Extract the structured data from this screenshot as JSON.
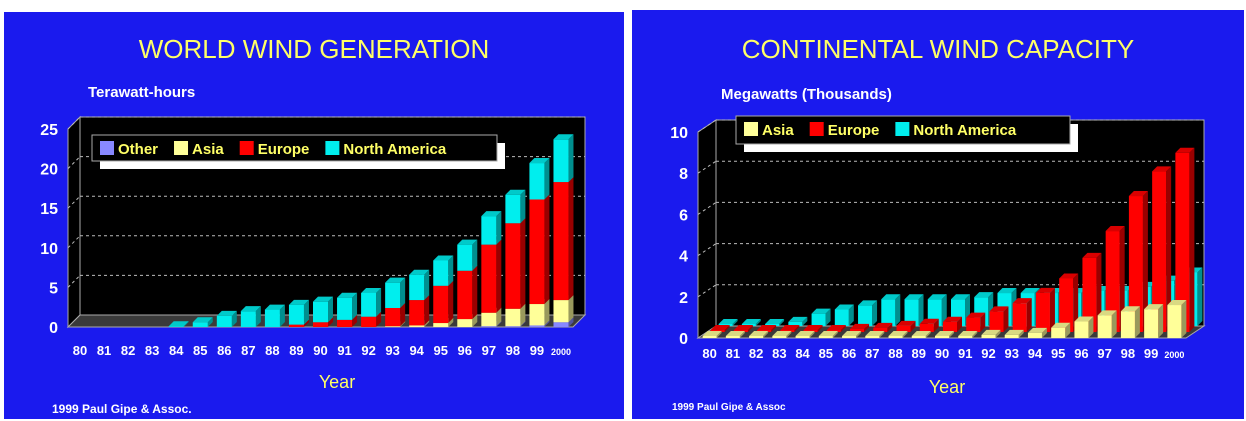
{
  "chart_data": [
    {
      "type": "bar",
      "stacked": true,
      "title": "WORLD WIND GENERATION",
      "ylabel": "Terawatt-hours",
      "xlabel": "Year",
      "ylim": [
        0,
        25
      ],
      "yticks": [
        "0",
        "5",
        "10",
        "15",
        "20",
        "25"
      ],
      "grid": true,
      "legend_position": "top-left",
      "categories": [
        "80",
        "81",
        "82",
        "83",
        "84",
        "85",
        "86",
        "87",
        "88",
        "89",
        "90",
        "91",
        "92",
        "93",
        "94",
        "95",
        "96",
        "97",
        "98",
        "99",
        "2000"
      ],
      "series": [
        {
          "name": "Other",
          "color": "#8888ff",
          "values": [
            0,
            0,
            0,
            0,
            0,
            0,
            0,
            0,
            0,
            0,
            0,
            0,
            0,
            0,
            0,
            0,
            0,
            0.1,
            0.1,
            0.2,
            0.6
          ]
        },
        {
          "name": "Asia",
          "color": "#ffff99",
          "values": [
            0,
            0,
            0,
            0,
            0,
            0,
            0,
            0,
            0,
            0,
            0,
            0,
            0,
            0.1,
            0.2,
            0.5,
            1,
            1.7,
            2.2,
            2.7,
            2.8
          ]
        },
        {
          "name": "Europe",
          "color": "#ff0000",
          "values": [
            0,
            0,
            0,
            0,
            0,
            0,
            0,
            0,
            0,
            0.3,
            0.6,
            0.9,
            1.3,
            2.3,
            3.2,
            4.7,
            6.1,
            8.6,
            10.8,
            13.2,
            14.9
          ]
        },
        {
          "name": "North America",
          "color": "#00eeee",
          "values": [
            0,
            0,
            0,
            0,
            0.1,
            0.6,
            1.4,
            2,
            2.2,
            2.5,
            2.6,
            2.8,
            3,
            3.2,
            3.2,
            3.2,
            3.3,
            3.6,
            3.6,
            4.6,
            5.4
          ]
        }
      ],
      "credit": "1999 Paul Gipe & Assoc."
    },
    {
      "type": "bar",
      "stacked": false,
      "title": "CONTINENTAL WIND CAPACITY",
      "ylabel": "Megawatts (Thousands)",
      "xlabel": "Year",
      "ylim": [
        0,
        10
      ],
      "yticks": [
        "0",
        "2",
        "4",
        "6",
        "8",
        "10"
      ],
      "grid": true,
      "legend_position": "top-left",
      "categories": [
        "80",
        "81",
        "82",
        "83",
        "84",
        "85",
        "86",
        "87",
        "88",
        "89",
        "90",
        "91",
        "92",
        "93",
        "94",
        "95",
        "96",
        "97",
        "98",
        "99",
        "2000"
      ],
      "series": [
        {
          "name": "Asia",
          "color": "#ffff99",
          "values": [
            0.05,
            0.05,
            0.05,
            0.05,
            0.05,
            0.05,
            0.05,
            0.05,
            0.1,
            0.1,
            0.1,
            0.1,
            0.15,
            0.15,
            0.25,
            0.5,
            0.8,
            1.1,
            1.3,
            1.4,
            1.6
          ]
        },
        {
          "name": "Europe",
          "color": "#ff0000",
          "values": [
            0,
            0,
            0,
            0.05,
            0.05,
            0.1,
            0.15,
            0.2,
            0.3,
            0.4,
            0.5,
            0.7,
            1,
            1.4,
            1.9,
            2.6,
            3.6,
            4.9,
            6.6,
            7.8,
            8.7
          ]
        },
        {
          "name": "North America",
          "color": "#00eeee",
          "values": [
            0.05,
            0.05,
            0.05,
            0.2,
            0.6,
            0.8,
            1,
            1.3,
            1.3,
            1.3,
            1.3,
            1.4,
            1.6,
            1.6,
            1.6,
            1.6,
            1.7,
            1.7,
            1.9,
            2.2,
            2.6
          ]
        }
      ],
      "credit": "1999 Paul Gipe & Assoc"
    }
  ]
}
